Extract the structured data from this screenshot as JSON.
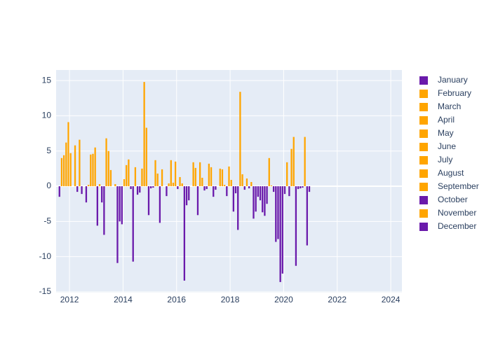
{
  "chart_data": {
    "type": "bar",
    "xlim": [
      "2011-07",
      "2024-06"
    ],
    "xticks": [
      2012,
      2014,
      2016,
      2018,
      2020,
      2022,
      2024
    ],
    "ylim": [
      -15.1,
      16.5
    ],
    "yticks": [
      -15,
      -10,
      -5,
      0,
      5,
      10,
      15
    ],
    "grid": true,
    "legend": "right",
    "positive_color": "#FFA500",
    "negative_color": "#6A1AAB",
    "series": [
      {
        "name": "January",
        "color": "#6A1AAB",
        "x": [
          "2012-01",
          "2013-01",
          "2014-01",
          "2015-01",
          "2016-01",
          "2017-01",
          "2018-01",
          "2019-01",
          "2020-01"
        ],
        "values": [
          4.7,
          -5.6,
          1.0,
          -0.3,
          -0.4,
          -0.6,
          0.9,
          -1.5,
          -1.1
        ]
      },
      {
        "name": "February",
        "color": "#FFA500",
        "x": [
          "2013-02",
          "2014-02",
          "2015-02",
          "2016-02",
          "2017-02",
          "2018-02",
          "2019-02",
          "2020-02"
        ],
        "values": [
          0.3,
          3.0,
          -0.2,
          1.3,
          -0.4,
          -3.6,
          -2.0,
          3.4
        ]
      },
      {
        "name": "March",
        "color": "#FFA500",
        "x": [
          "2012-03",
          "2013-03",
          "2014-03",
          "2015-03",
          "2016-03",
          "2017-03",
          "2018-03",
          "2019-03",
          "2020-03"
        ],
        "values": [
          5.8,
          -2.3,
          3.8,
          3.7,
          0.4,
          3.2,
          -1.0,
          -3.7,
          -1.4
        ]
      },
      {
        "name": "April",
        "color": "#FFA500",
        "x": [
          "2012-04",
          "2013-04",
          "2014-04",
          "2015-04",
          "2016-04",
          "2017-04",
          "2018-04",
          "2019-04",
          "2020-04"
        ],
        "values": [
          -0.8,
          -6.9,
          -0.4,
          1.8,
          -13.4,
          2.7,
          -6.2,
          -4.2,
          5.3
        ]
      },
      {
        "name": "May",
        "color": "#FFA500",
        "x": [
          "2012-05",
          "2013-05",
          "2014-05",
          "2015-05",
          "2016-05",
          "2017-05",
          "2018-05",
          "2019-05",
          "2020-05"
        ],
        "values": [
          6.6,
          6.8,
          -10.7,
          -5.2,
          -2.7,
          -1.5,
          13.4,
          -2.5,
          7.0
        ]
      },
      {
        "name": "June",
        "color": "#FFA500",
        "x": [
          "2012-06",
          "2013-06",
          "2014-06",
          "2015-06",
          "2016-06",
          "2017-06",
          "2018-06",
          "2019-06",
          "2020-06"
        ],
        "values": [
          -1.1,
          5.0,
          2.7,
          2.4,
          -2.0,
          -0.5,
          1.7,
          4.0,
          -11.3
        ]
      },
      {
        "name": "July",
        "color": "#FFA500",
        "x": [
          "2013-07",
          "2014-07",
          "2018-07",
          "2019-07",
          "2020-07"
        ],
        "values": [
          2.3,
          -1.2,
          -0.5,
          0.1,
          -0.4
        ]
      },
      {
        "name": "August",
        "color": "#FFA500",
        "x": [
          "2011-08",
          "2012-08",
          "2014-08",
          "2015-08",
          "2016-08",
          "2017-08",
          "2018-08",
          "2019-08",
          "2020-08"
        ],
        "values": [
          -1.5,
          -2.3,
          -0.9,
          -1.4,
          3.4,
          2.5,
          1.1,
          -0.8,
          -0.3
        ]
      },
      {
        "name": "September",
        "color": "#FFA500",
        "x": [
          "2011-09",
          "2012-09",
          "2013-09",
          "2014-09",
          "2015-09",
          "2016-09",
          "2017-09",
          "2018-09",
          "2019-09",
          "2020-09"
        ],
        "values": [
          4.0,
          0.2,
          0.3,
          2.5,
          0.4,
          2.6,
          2.4,
          -0.3,
          -7.9,
          -0.2
        ]
      },
      {
        "name": "October",
        "color": "#6A1AAB",
        "x": [
          "2011-10",
          "2012-10",
          "2013-10",
          "2014-10",
          "2015-10",
          "2016-10",
          "2017-10",
          "2018-10",
          "2019-10",
          "2020-10"
        ],
        "values": [
          4.4,
          4.5,
          -10.9,
          14.8,
          3.7,
          -4.1,
          0.2,
          0.6,
          -7.5,
          7.0
        ]
      },
      {
        "name": "November",
        "color": "#FFA500",
        "x": [
          "2011-11",
          "2012-11",
          "2013-11",
          "2014-11",
          "2015-11",
          "2016-11",
          "2017-11",
          "2018-11",
          "2019-11",
          "2020-11"
        ],
        "values": [
          6.2,
          4.6,
          -5.0,
          8.3,
          0.5,
          3.4,
          -1.4,
          -4.6,
          -13.6,
          -8.4
        ]
      },
      {
        "name": "December",
        "color": "#6A1AAB",
        "x": [
          "2011-12",
          "2012-12",
          "2013-12",
          "2014-12",
          "2015-12",
          "2016-12",
          "2017-12",
          "2018-12",
          "2019-12",
          "2020-12"
        ],
        "values": [
          9.1,
          5.5,
          -5.4,
          -4.1,
          3.5,
          1.2,
          2.8,
          -3.6,
          -12.4,
          -0.8
        ]
      }
    ]
  }
}
